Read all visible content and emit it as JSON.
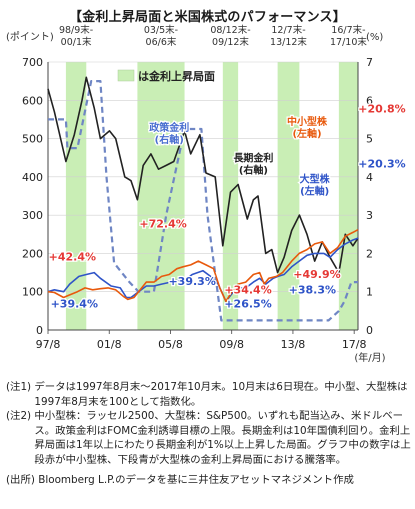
{
  "title": "【金利上昇局面と米国株式のパフォーマンス】",
  "chart_data": {
    "type": "line",
    "left_axis_unit": "(ポイント)",
    "right_axis_unit": "(%)",
    "x_unit": "(年/月)",
    "x_ticks": [
      {
        "label": "97/8",
        "t": 1997.58
      },
      {
        "label": "01/8",
        "t": 2001.58
      },
      {
        "label": "05/8",
        "t": 2005.58
      },
      {
        "label": "09/8",
        "t": 2009.58
      },
      {
        "label": "13/8",
        "t": 2013.58
      },
      {
        "label": "17/8",
        "t": 2017.58
      }
    ],
    "x_range": [
      1997.58,
      2017.83
    ],
    "y_left_range": [
      0,
      700
    ],
    "y_left_ticks": [
      0,
      100,
      200,
      300,
      400,
      500,
      600,
      700
    ],
    "y_right_range": [
      0,
      7
    ],
    "y_right_ticks": [
      0,
      1,
      2,
      3,
      4,
      5,
      6,
      7
    ],
    "legend": "は金利上昇局面",
    "shade_color": "#c9eeb5",
    "rising_periods": [
      {
        "label": "98/9末-00/1末",
        "start": 1998.75,
        "end": 2000.08
      },
      {
        "label": "03/5末-06/6末",
        "start": 2003.42,
        "end": 2006.5
      },
      {
        "label": "08/12末-09/12末",
        "start": 2009.0,
        "end": 2010.0
      },
      {
        "label": "12/7末-13/12末",
        "start": 2012.58,
        "end": 2014.0
      },
      {
        "label": "16/7末-17/10末",
        "start": 2016.58,
        "end": 2017.83
      }
    ],
    "series": [
      {
        "name": "中小型株",
        "axis": "left",
        "color": "#e8590c",
        "points": [
          [
            1997.58,
            100
          ],
          [
            1998.0,
            98
          ],
          [
            1998.6,
            85
          ],
          [
            1998.9,
            90
          ],
          [
            1999.5,
            100
          ],
          [
            2000.0,
            110
          ],
          [
            2000.5,
            105
          ],
          [
            2001.0,
            108
          ],
          [
            2001.5,
            110
          ],
          [
            2002.0,
            105
          ],
          [
            2002.5,
            88
          ],
          [
            2002.8,
            80
          ],
          [
            2003.2,
            85
          ],
          [
            2003.6,
            105
          ],
          [
            2004.0,
            125
          ],
          [
            2004.5,
            125
          ],
          [
            2005.0,
            140
          ],
          [
            2005.5,
            145
          ],
          [
            2006.0,
            160
          ],
          [
            2006.4,
            165
          ],
          [
            2006.9,
            170
          ],
          [
            2007.4,
            180
          ],
          [
            2007.9,
            170
          ],
          [
            2008.4,
            160
          ],
          [
            2008.8,
            110
          ],
          [
            2009.2,
            75
          ],
          [
            2009.6,
            100
          ],
          [
            2009.99,
            120
          ],
          [
            2010.5,
            125
          ],
          [
            2011.0,
            145
          ],
          [
            2011.4,
            150
          ],
          [
            2011.7,
            120
          ],
          [
            2012.0,
            135
          ],
          [
            2012.5,
            140
          ],
          [
            2012.9,
            150
          ],
          [
            2013.5,
            180
          ],
          [
            2013.99,
            200
          ],
          [
            2014.5,
            210
          ],
          [
            2015.0,
            225
          ],
          [
            2015.5,
            230
          ],
          [
            2016.0,
            200
          ],
          [
            2016.5,
            215
          ],
          [
            2017.0,
            245
          ],
          [
            2017.5,
            255
          ],
          [
            2017.83,
            262
          ]
        ]
      },
      {
        "name": "大型株",
        "axis": "left",
        "color": "#2f54c8",
        "points": [
          [
            1997.58,
            100
          ],
          [
            1998.0,
            105
          ],
          [
            1998.6,
            100
          ],
          [
            1999.0,
            120
          ],
          [
            1999.6,
            140
          ],
          [
            2000.08,
            145
          ],
          [
            2000.6,
            150
          ],
          [
            2001.0,
            135
          ],
          [
            2001.7,
            115
          ],
          [
            2002.3,
            110
          ],
          [
            2002.7,
            85
          ],
          [
            2003.0,
            85
          ],
          [
            2003.5,
            100
          ],
          [
            2004.0,
            115
          ],
          [
            2004.5,
            115
          ],
          [
            2005.0,
            120
          ],
          [
            2005.6,
            125
          ],
          [
            2006.0,
            130
          ],
          [
            2006.5,
            130
          ],
          [
            2007.0,
            145
          ],
          [
            2007.7,
            155
          ],
          [
            2008.2,
            140
          ],
          [
            2008.7,
            120
          ],
          [
            2009.2,
            75
          ],
          [
            2009.6,
            95
          ],
          [
            2009.99,
            110
          ],
          [
            2010.5,
            110
          ],
          [
            2011.0,
            125
          ],
          [
            2011.4,
            135
          ],
          [
            2011.8,
            120
          ],
          [
            2012.3,
            135
          ],
          [
            2012.6,
            140
          ],
          [
            2013.0,
            145
          ],
          [
            2013.5,
            165
          ],
          [
            2013.99,
            180
          ],
          [
            2014.5,
            195
          ],
          [
            2015.0,
            200
          ],
          [
            2015.6,
            200
          ],
          [
            2016.0,
            190
          ],
          [
            2016.5,
            210
          ],
          [
            2017.0,
            225
          ],
          [
            2017.5,
            235
          ],
          [
            2017.83,
            240
          ]
        ]
      },
      {
        "name": "長期金利",
        "axis": "right",
        "color": "#222222",
        "label": "長期金利\n(右軸)",
        "points": [
          [
            1997.58,
            6.3
          ],
          [
            1998.0,
            5.7
          ],
          [
            1998.75,
            4.4
          ],
          [
            1999.3,
            5.1
          ],
          [
            1999.8,
            6.0
          ],
          [
            2000.08,
            6.6
          ],
          [
            2000.6,
            5.8
          ],
          [
            2001.0,
            5.0
          ],
          [
            2001.6,
            5.2
          ],
          [
            2002.0,
            5.0
          ],
          [
            2002.6,
            4.0
          ],
          [
            2003.0,
            3.9
          ],
          [
            2003.42,
            3.4
          ],
          [
            2003.8,
            4.3
          ],
          [
            2004.3,
            4.6
          ],
          [
            2004.8,
            4.2
          ],
          [
            2005.3,
            4.3
          ],
          [
            2005.8,
            4.4
          ],
          [
            2006.5,
            5.2
          ],
          [
            2006.9,
            4.6
          ],
          [
            2007.5,
            5.1
          ],
          [
            2007.9,
            4.1
          ],
          [
            2008.5,
            4.0
          ],
          [
            2009.0,
            2.2
          ],
          [
            2009.5,
            3.6
          ],
          [
            2010.0,
            3.8
          ],
          [
            2010.6,
            2.9
          ],
          [
            2011.0,
            3.4
          ],
          [
            2011.3,
            3.5
          ],
          [
            2011.8,
            2.0
          ],
          [
            2012.2,
            2.1
          ],
          [
            2012.58,
            1.5
          ],
          [
            2013.0,
            1.9
          ],
          [
            2013.5,
            2.6
          ],
          [
            2014.0,
            3.0
          ],
          [
            2014.5,
            2.5
          ],
          [
            2015.0,
            1.8
          ],
          [
            2015.5,
            2.3
          ],
          [
            2016.0,
            1.9
          ],
          [
            2016.58,
            1.5
          ],
          [
            2017.0,
            2.5
          ],
          [
            2017.5,
            2.2
          ],
          [
            2017.83,
            2.4
          ]
        ]
      },
      {
        "name": "政策金利",
        "axis": "right",
        "color": "#6f86c4",
        "dashed": true,
        "label": "政策金利\n(右軸)",
        "points": [
          [
            1997.58,
            5.5
          ],
          [
            1998.75,
            5.5
          ],
          [
            1998.85,
            4.75
          ],
          [
            1999.5,
            4.75
          ],
          [
            2000.4,
            6.5
          ],
          [
            2001.0,
            6.5
          ],
          [
            2001.4,
            4.0
          ],
          [
            2001.9,
            1.75
          ],
          [
            2002.9,
            1.25
          ],
          [
            2003.5,
            1.0
          ],
          [
            2004.5,
            1.0
          ],
          [
            2005.3,
            3.0
          ],
          [
            2006.5,
            5.25
          ],
          [
            2007.6,
            5.25
          ],
          [
            2008.0,
            3.0
          ],
          [
            2008.9,
            0.25
          ],
          [
            2015.9,
            0.25
          ],
          [
            2016.58,
            0.5
          ],
          [
            2016.95,
            0.75
          ],
          [
            2017.4,
            1.25
          ],
          [
            2017.83,
            1.25
          ]
        ]
      }
    ],
    "annotations": [
      {
        "text": "+42.4%",
        "color": "#e53935",
        "t": 1997.62,
        "v": 181
      },
      {
        "text": "+39.4%",
        "color": "#2f54c8",
        "t": 1997.75,
        "v": 59
      },
      {
        "text": "+72.4%",
        "color": "#e53935",
        "t": 2003.55,
        "v": 268
      },
      {
        "text": "+39.3%",
        "color": "#2f54c8",
        "t": 2005.45,
        "v": 118
      },
      {
        "text": "+34.4%",
        "color": "#e53935",
        "t": 2009.1,
        "v": 95
      },
      {
        "text": "+26.5%",
        "color": "#2f54c8",
        "t": 2009.1,
        "v": 59
      },
      {
        "text": "+49.9%",
        "color": "#e53935",
        "t": 2013.6,
        "v": 136
      },
      {
        "text": "+38.3%",
        "color": "#2f54c8",
        "t": 2013.3,
        "v": 95
      },
      {
        "text": "+20.8%",
        "color": "#e53935",
        "t": 2017.85,
        "v": 568
      },
      {
        "text": "+20.3%",
        "color": "#2f54c8",
        "t": 2017.85,
        "v": 425
      }
    ],
    "series_labels": [
      {
        "lines": [
          "政策金利",
          "(右軸)"
        ],
        "color": "#4a6fd0",
        "t": 2005.5,
        "v": 520
      },
      {
        "lines": [
          "長期金利",
          "(右軸)"
        ],
        "color": "#222222",
        "t": 2011.0,
        "v": 440
      },
      {
        "lines": [
          "中小型株",
          "(左軸)"
        ],
        "color": "#e8590c",
        "t": 2014.5,
        "v": 535
      },
      {
        "lines": [
          "大型株",
          "(左軸)"
        ],
        "color": "#2f54c8",
        "t": 2015.0,
        "v": 385
      }
    ]
  },
  "notes": [
    {
      "label": "(注1) ",
      "text": "データは1997年8月末～2017年10月末。10月末は6日現在。中小型、大型株は1997年8月末を100として指数化。"
    },
    {
      "label": "(注2) ",
      "text": "中小型株：ラッセル2500、大型株：S&P500。いずれも配当込み、米ドルベース。政策金利はFOMC金利誘導目標の上限。長期金利は10年国債利回り。金利上昇局面は1年以上にわたり長期金利が1%以上上昇した局面。グラフ中の数字は上段赤が中小型株、下段青が大型株の金利上昇局面における騰落率。"
    },
    {
      "label": "(出所) ",
      "text": "Bloomberg L.P.のデータを基に三井住友アセットマネジメント作成"
    }
  ]
}
